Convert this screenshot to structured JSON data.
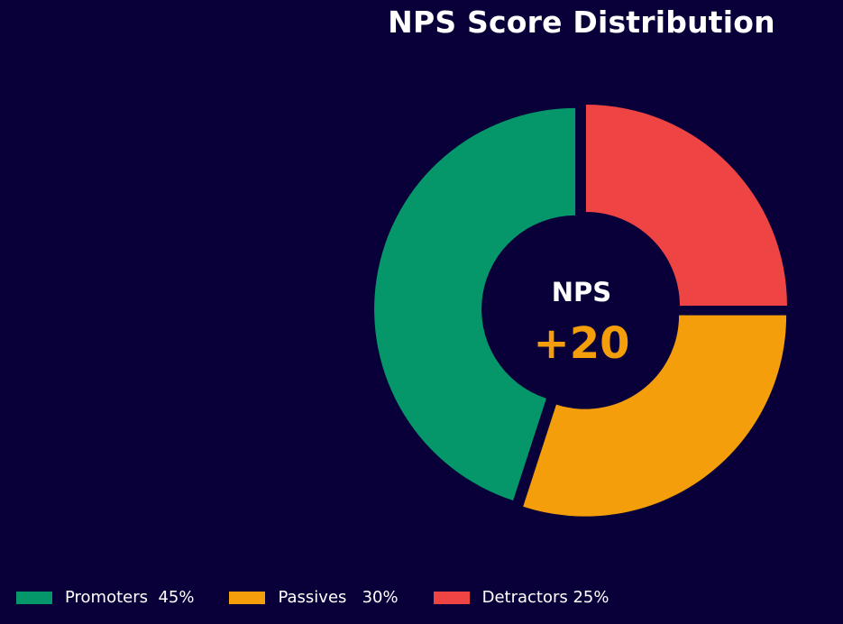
{
  "chart_data": {
    "type": "pie",
    "variant": "donut",
    "title": "NPS Score Distribution",
    "categories": [
      "Detractors",
      "Passives",
      "Promoters"
    ],
    "values": [
      25,
      30,
      45
    ],
    "unit": "%",
    "colors": [
      "#ef4444",
      "#f59e0b",
      "#059669"
    ],
    "start_angle_deg": 90,
    "direction": "clockwise",
    "exploded": true,
    "center_annotation": {
      "caption": "NPS",
      "value": "+20"
    },
    "legend": {
      "position": "bottom",
      "entries": [
        {
          "label": "Promoters  45%",
          "color": "#059669"
        },
        {
          "label": "Passives   30%",
          "color": "#f59e0b"
        },
        {
          "label": "Detractors 25%",
          "color": "#ef4444"
        }
      ]
    }
  },
  "colors": {
    "background": "#09003a",
    "text": "#ffffff",
    "accent": "#f59e0b"
  }
}
